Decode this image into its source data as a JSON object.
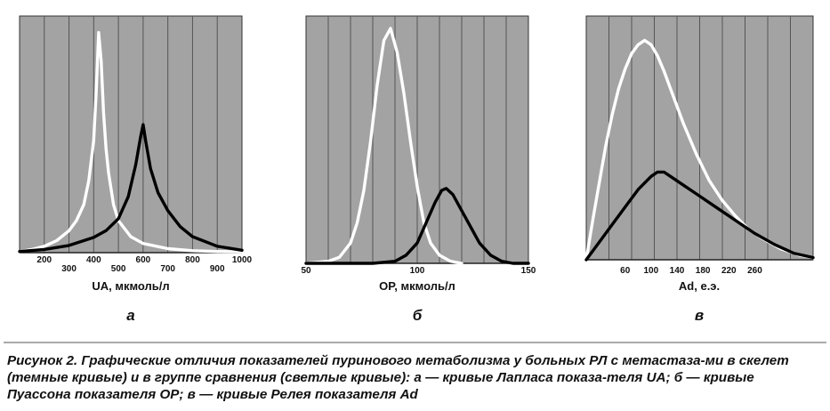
{
  "chart_data": [
    {
      "type": "line",
      "panel_label": "а",
      "xlabel": "UA, мкмоль/л",
      "xlim": [
        100,
        1000
      ],
      "ticks_upper": [
        200,
        400,
        600,
        800,
        1000
      ],
      "ticks_lower": [
        300,
        500,
        700,
        900
      ],
      "grid": true,
      "series": [
        {
          "style": "light",
          "x": [
            100,
            150,
            200,
            250,
            300,
            330,
            360,
            380,
            400,
            410,
            420,
            430,
            440,
            450,
            460,
            480,
            500,
            550,
            600,
            700,
            800,
            900,
            1000
          ],
          "y": [
            0.3,
            0.8,
            1.6,
            3,
            5.5,
            8,
            12,
            18,
            28,
            40,
            55,
            48,
            35,
            26,
            20,
            12,
            8,
            4,
            2.3,
            1,
            0.5,
            0.3,
            0.2
          ]
        },
        {
          "style": "dark",
          "x": [
            100,
            200,
            300,
            400,
            450,
            500,
            540,
            570,
            590,
            600,
            610,
            630,
            660,
            700,
            750,
            800,
            900,
            1000
          ],
          "y": [
            0.3,
            0.8,
            1.8,
            3.8,
            5.5,
            8.5,
            14,
            22,
            29,
            32,
            28,
            21,
            15,
            10.5,
            6.5,
            4,
            1.6,
            0.6
          ]
        }
      ]
    },
    {
      "type": "line",
      "panel_label": "б",
      "xlabel": "OP, мкмоль/л",
      "xlim": [
        50,
        150
      ],
      "ticks": [
        50,
        100,
        150
      ],
      "grid": true,
      "series": [
        {
          "style": "light",
          "x": [
            50,
            60,
            65,
            70,
            73,
            76,
            79,
            82,
            85,
            88,
            91,
            94,
            97,
            100,
            103,
            106,
            110,
            115,
            120
          ],
          "y": [
            0,
            0.5,
            1.5,
            5,
            10,
            18,
            30,
            44,
            55,
            58,
            52,
            42,
            30,
            19,
            10,
            5,
            2,
            0.5,
            0
          ]
        },
        {
          "style": "dark",
          "x": [
            50,
            70,
            80,
            90,
            95,
            100,
            104,
            108,
            111,
            113,
            116,
            120,
            124,
            128,
            133,
            138,
            143,
            150
          ],
          "y": [
            0,
            0,
            0,
            0.5,
            2,
            5,
            10,
            15,
            18,
            18.5,
            17,
            13,
            9,
            5,
            2,
            0.5,
            0,
            0
          ]
        }
      ]
    },
    {
      "type": "line",
      "panel_label": "в",
      "xlabel": "Ad, е.э.",
      "xlim": [
        0,
        350
      ],
      "ticks": [
        60,
        100,
        140,
        180,
        220,
        260
      ],
      "grid": true,
      "series": [
        {
          "style": "light",
          "x": [
            0,
            10,
            20,
            30,
            40,
            50,
            60,
            70,
            80,
            90,
            100,
            110,
            120,
            130,
            140,
            150,
            170,
            190,
            210,
            230,
            250,
            270,
            300,
            330,
            350
          ],
          "y": [
            0,
            18,
            35,
            52,
            66,
            78,
            87,
            94,
            98,
            100,
            98,
            93,
            86,
            78,
            70,
            62,
            48,
            36,
            27,
            20,
            14,
            10,
            5,
            2,
            1
          ]
        },
        {
          "style": "dark",
          "x": [
            0,
            20,
            40,
            60,
            80,
            100,
            110,
            120,
            130,
            150,
            170,
            200,
            230,
            260,
            290,
            320,
            350
          ],
          "y": [
            0,
            8,
            16,
            24,
            32,
            38,
            40,
            40,
            38,
            34,
            30,
            24,
            18,
            12,
            7,
            3,
            1
          ]
        }
      ]
    }
  ],
  "caption": "Рисунок 2. Графические отличия показателей пуринового метаболизма у больных РЛ с метастаза-ми в скелет (темные кривые) и в группе сравнения (светлые кривые): а — кривые Лапласа показа-теля UA; б — кривые Пуассона показателя OP; в — кривые Релея показателя Ad"
}
